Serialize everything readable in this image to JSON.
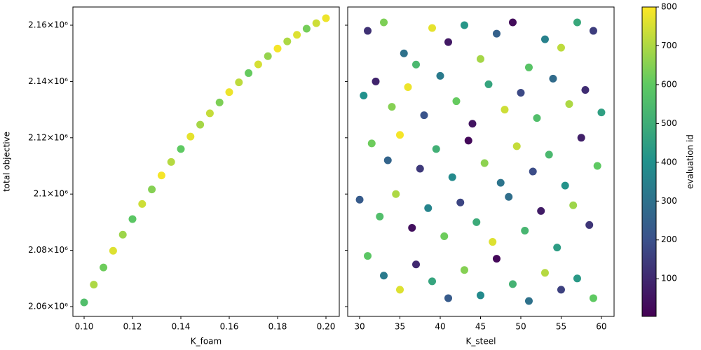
{
  "chart_data": [
    {
      "type": "scatter",
      "xlabel": "K_foam",
      "ylabel": "total objective",
      "x": [
        0.1,
        0.104,
        0.108,
        0.112,
        0.116,
        0.12,
        0.124,
        0.128,
        0.132,
        0.136,
        0.14,
        0.144,
        0.148,
        0.152,
        0.156,
        0.16,
        0.164,
        0.168,
        0.172,
        0.176,
        0.18,
        0.184,
        0.188,
        0.192,
        0.196,
        0.2
      ],
      "values": [
        2061500,
        2067800,
        2073910,
        2079830,
        2085560,
        2091110,
        2096470,
        2101630,
        2106620,
        2111410,
        2116010,
        2120430,
        2124660,
        2128700,
        2132550,
        2136210,
        2139690,
        2142980,
        2146070,
        2148990,
        2151710,
        2154240,
        2156590,
        2158750,
        2160720,
        2162500
      ],
      "c": [
        560,
        700,
        620,
        760,
        680,
        590,
        740,
        650,
        790,
        710,
        600,
        770,
        690,
        730,
        640,
        780,
        720,
        610,
        750,
        670,
        790,
        700,
        760,
        630,
        740,
        780
      ],
      "xlim": [
        0.09536,
        0.20551
      ],
      "ylim": [
        2056520,
        2166470
      ],
      "xticks": [
        {
          "value": 0.1,
          "label": "0.10"
        },
        {
          "value": 0.12,
          "label": "0.12"
        },
        {
          "value": 0.14,
          "label": "0.14"
        },
        {
          "value": 0.16,
          "label": "0.16"
        },
        {
          "value": 0.18,
          "label": "0.18"
        },
        {
          "value": 0.2,
          "label": "0.20"
        }
      ],
      "yticks": [
        {
          "value": 2060000,
          "label": "2.06×10⁶"
        },
        {
          "value": 2080000,
          "label": "2.08×10⁶"
        },
        {
          "value": 2100000,
          "label": "2.1×10⁶"
        },
        {
          "value": 2120000,
          "label": "2.12×10⁶"
        },
        {
          "value": 2140000,
          "label": "2.14×10⁶"
        },
        {
          "value": 2160000,
          "label": "2.16×10⁶"
        }
      ],
      "colormap": "viridis"
    },
    {
      "type": "scatter",
      "xlabel": "K_steel",
      "x": [
        31,
        33,
        35.5,
        37,
        39,
        41,
        43,
        45,
        47,
        49,
        51,
        53,
        55,
        57,
        59,
        30.5,
        32,
        34,
        36,
        38,
        40,
        42,
        44,
        46,
        48,
        50,
        52,
        54,
        56,
        58,
        60,
        31.5,
        33.5,
        35,
        37.5,
        39.5,
        41.5,
        43.5,
        45.5,
        47.5,
        49.5,
        51.5,
        53.5,
        55.5,
        57.5,
        59.5,
        30,
        32.5,
        34.5,
        36.5,
        38.5,
        40.5,
        42.5,
        44.5,
        46.5,
        48.5,
        50.5,
        52.5,
        54.5,
        56.5,
        58.5,
        31,
        33,
        35,
        37,
        39,
        41,
        43,
        45,
        47,
        49,
        51,
        53,
        55,
        57,
        59
      ],
      "values": [
        2158000,
        2161000,
        2150000,
        2146000,
        2159000,
        2154000,
        2160000,
        2148000,
        2157000,
        2161000,
        2145000,
        2155000,
        2152000,
        2161000,
        2158000,
        2135000,
        2140000,
        2131000,
        2138000,
        2128000,
        2142000,
        2133000,
        2125000,
        2139000,
        2130000,
        2136000,
        2127000,
        2141000,
        2132000,
        2137000,
        2129000,
        2118000,
        2112000,
        2121000,
        2109000,
        2116000,
        2106000,
        2119000,
        2111000,
        2104000,
        2117000,
        2108000,
        2114000,
        2103000,
        2120000,
        2110000,
        2098000,
        2092000,
        2100000,
        2088000,
        2095000,
        2085000,
        2097000,
        2090000,
        2083000,
        2099000,
        2087000,
        2094000,
        2081000,
        2096000,
        2089000,
        2078000,
        2071000,
        2066000,
        2075000,
        2069000,
        2063000,
        2073000,
        2064000,
        2077000,
        2068000,
        2062000,
        2072000,
        2066000,
        2070000,
        2063000
      ],
      "c": [
        120,
        640,
        300,
        540,
        770,
        60,
        420,
        690,
        250,
        30,
        580,
        350,
        720,
        480,
        150,
        400,
        90,
        650,
        780,
        210,
        330,
        610,
        50,
        470,
        740,
        180,
        560,
        280,
        700,
        110,
        450,
        620,
        260,
        790,
        140,
        510,
        380,
        20,
        660,
        310,
        730,
        190,
        540,
        410,
        80,
        600,
        230,
        560,
        700,
        40,
        360,
        620,
        170,
        490,
        760,
        290,
        530,
        70,
        440,
        680,
        130,
        590,
        330,
        760,
        100,
        470,
        230,
        650,
        380,
        20,
        520,
        300,
        710,
        160,
        430,
        600
      ],
      "xlim": [
        28.52,
        61.57
      ],
      "ylim": [
        2056520,
        2166470
      ],
      "xticks": [
        30,
        35,
        40,
        45,
        50,
        55,
        60
      ],
      "yticks": [
        2060000,
        2080000,
        2100000,
        2120000,
        2140000,
        2160000
      ],
      "colormap": "viridis",
      "colorbar": {
        "label": "evaluation id",
        "clim": [
          3,
          800
        ],
        "ticks": [
          100,
          200,
          300,
          400,
          500,
          600,
          700,
          800
        ]
      }
    }
  ]
}
